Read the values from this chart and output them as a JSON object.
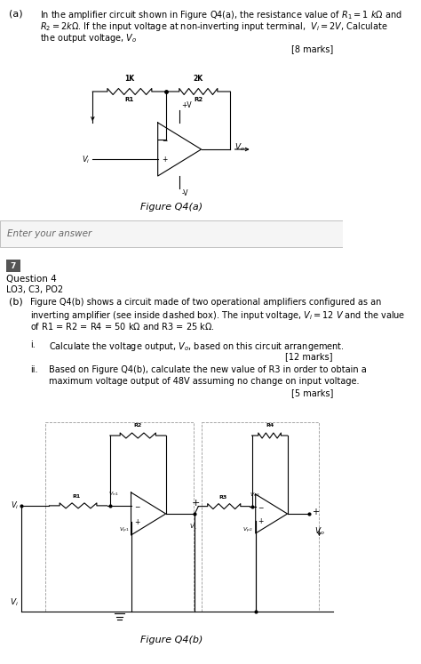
{
  "bg_color": "#ffffff",
  "part_a": {
    "label": "(a)",
    "marks": "[8 marks]",
    "figure_caption": "Figure Q4(a)"
  },
  "answer_box": "Enter your answer",
  "question_number": "7",
  "question_label": "Question 4",
  "lo_label": "LO3, C3, PO2",
  "part_b": {
    "label": "(b)",
    "sub_i_label": "i.",
    "sub_i_text": "Calculate the voltage output, $V_o$, based on this circuit arrangement.",
    "sub_i_marks": "[12 marks]",
    "sub_ii_label": "ii.",
    "sub_ii_marks": "[5 marks]",
    "figure_caption": "Figure Q4(b)"
  }
}
